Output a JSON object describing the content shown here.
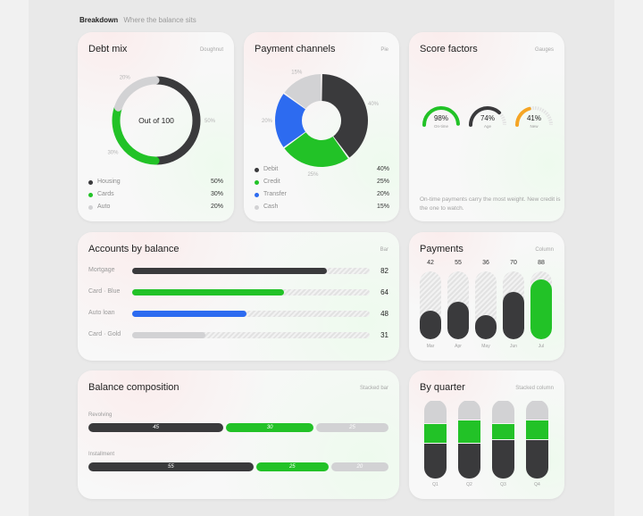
{
  "section": {
    "title": "Breakdown",
    "subtitle": "Where the balance sits"
  },
  "colors": {
    "dark": "#3a3a3c",
    "green": "#22c227",
    "blue": "#2d6bf0",
    "grey": "#d2d2d4",
    "orange": "#f5a524"
  },
  "debt_mix": {
    "title": "Debt mix",
    "tag": "Doughnut",
    "center": "Out of 100",
    "slices": [
      {
        "label": "Housing",
        "value": 50,
        "pct": "50%",
        "ring_label": "50%",
        "color": "#3a3a3c"
      },
      {
        "label": "Cards",
        "value": 30,
        "pct": "30%",
        "ring_label": "30%",
        "color": "#22c227"
      },
      {
        "label": "Auto",
        "value": 20,
        "pct": "20%",
        "ring_label": "20%",
        "color": "#d2d2d4"
      }
    ]
  },
  "payment_channels": {
    "title": "Payment channels",
    "tag": "Pie",
    "slices": [
      {
        "label": "Debit",
        "value": 40,
        "pct": "40%",
        "color": "#3a3a3c"
      },
      {
        "label": "Credit",
        "value": 25,
        "pct": "25%",
        "color": "#22c227"
      },
      {
        "label": "Transfer",
        "value": 20,
        "pct": "20%",
        "color": "#2d6bf0"
      },
      {
        "label": "Cash",
        "value": 15,
        "pct": "15%",
        "color": "#d2d2d4"
      }
    ]
  },
  "score_factors": {
    "title": "Score factors",
    "tag": "Gauges",
    "gauges": [
      {
        "value": 98,
        "text": "98%",
        "label": "On-time",
        "color": "#22c227"
      },
      {
        "value": 74,
        "text": "74%",
        "label": "Age",
        "color": "#3a3a3c"
      },
      {
        "value": 41,
        "text": "41%",
        "label": "New",
        "color": "#f5a524"
      }
    ],
    "note": "On-time payments carry the most weight. New credit is the one to watch."
  },
  "accounts": {
    "title": "Accounts by balance",
    "tag": "Bar",
    "rows": [
      {
        "label": "Mortgage",
        "value": 82,
        "text": "82",
        "color": "#3a3a3c"
      },
      {
        "label": "Card · Blue",
        "value": 64,
        "text": "64",
        "color": "#22c227"
      },
      {
        "label": "Auto loan",
        "value": 48,
        "text": "48",
        "color": "#2d6bf0"
      },
      {
        "label": "Card · Gold",
        "value": 31,
        "text": "31",
        "color": "#d2d2d4"
      }
    ]
  },
  "payments": {
    "title": "Payments",
    "tag": "Column",
    "cols": [
      {
        "month": "Mar",
        "value": 42,
        "text": "42",
        "color": "#3a3a3c"
      },
      {
        "month": "Apr",
        "value": 55,
        "text": "55",
        "color": "#3a3a3c"
      },
      {
        "month": "May",
        "value": 36,
        "text": "36",
        "color": "#3a3a3c"
      },
      {
        "month": "Jun",
        "value": 70,
        "text": "70",
        "color": "#3a3a3c"
      },
      {
        "month": "Jul",
        "value": 88,
        "text": "88",
        "color": "#22c227"
      }
    ]
  },
  "composition": {
    "title": "Balance composition",
    "tag": "Stacked bar",
    "rows": [
      {
        "label": "Revolving",
        "segments": [
          {
            "value": 45,
            "text": "45",
            "color": "#3a3a3c",
            "text_color": "#ffffff"
          },
          {
            "value": 30,
            "text": "30",
            "color": "#22c227",
            "text_color": "#ffffff"
          },
          {
            "value": 25,
            "text": "25",
            "color": "#d2d2d4",
            "text_color": "#ffffff"
          }
        ]
      },
      {
        "label": "Installment",
        "segments": [
          {
            "value": 55,
            "text": "55",
            "color": "#3a3a3c",
            "text_color": "#ffffff"
          },
          {
            "value": 25,
            "text": "25",
            "color": "#22c227",
            "text_color": "#ffffff"
          },
          {
            "value": 20,
            "text": "20",
            "color": "#d2d2d4",
            "text_color": "#ffffff"
          }
        ]
      }
    ]
  },
  "quarters": {
    "title": "By quarter",
    "tag": "Stacked column",
    "cols": [
      {
        "q": "Q1",
        "segments": [
          {
            "value": 45,
            "color": "#3a3a3c"
          },
          {
            "value": 25,
            "color": "#22c227"
          },
          {
            "value": 30,
            "color": "#d2d2d4"
          }
        ]
      },
      {
        "q": "Q2",
        "segments": [
          {
            "value": 45,
            "color": "#3a3a3c"
          },
          {
            "value": 30,
            "color": "#22c227"
          },
          {
            "value": 25,
            "color": "#d2d2d4"
          }
        ]
      },
      {
        "q": "Q3",
        "segments": [
          {
            "value": 50,
            "color": "#3a3a3c"
          },
          {
            "value": 20,
            "color": "#22c227"
          },
          {
            "value": 30,
            "color": "#d2d2d4"
          }
        ]
      },
      {
        "q": "Q4",
        "segments": [
          {
            "value": 50,
            "color": "#3a3a3c"
          },
          {
            "value": 25,
            "color": "#22c227"
          },
          {
            "value": 25,
            "color": "#d2d2d4"
          }
        ]
      }
    ]
  }
}
